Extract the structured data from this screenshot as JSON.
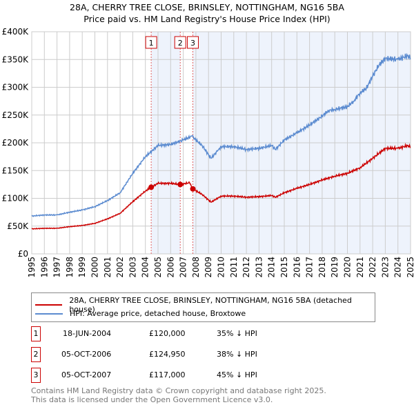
{
  "title": "28A, CHERRY TREE CLOSE, BRINSLEY, NOTTINGHAM, NG16 5BA",
  "subtitle": "Price paid vs. HM Land Registry's House Price Index (HPI)",
  "chart_data": {
    "type": "line",
    "title": "28A, CHERRY TREE CLOSE, BRINSLEY, NOTTINGHAM, NG16 5BA",
    "subtitle": "Price paid vs. HM Land Registry's House Price Index (HPI)",
    "xlim": [
      1995,
      2025
    ],
    "ylim": [
      0,
      400000
    ],
    "grid": true,
    "y_ticks": [
      {
        "v": 0,
        "label": "£0"
      },
      {
        "v": 50000,
        "label": "£50K"
      },
      {
        "v": 100000,
        "label": "£100K"
      },
      {
        "v": 150000,
        "label": "£150K"
      },
      {
        "v": 200000,
        "label": "£200K"
      },
      {
        "v": 250000,
        "label": "£250K"
      },
      {
        "v": 300000,
        "label": "£300K"
      },
      {
        "v": 350000,
        "label": "£350K"
      },
      {
        "v": 400000,
        "label": "£400K"
      }
    ],
    "x_ticks": [
      "1995",
      "1996",
      "1997",
      "1998",
      "1999",
      "2000",
      "2001",
      "2002",
      "2003",
      "2004",
      "2005",
      "2006",
      "2007",
      "2008",
      "2009",
      "2010",
      "2011",
      "2012",
      "2013",
      "2014",
      "2015",
      "2016",
      "2017",
      "2018",
      "2019",
      "2020",
      "2021",
      "2022",
      "2023",
      "2024",
      "2025"
    ],
    "series": [
      {
        "name": "28A, CHERRY TREE CLOSE, BRINSLEY, NOTTINGHAM, NG16 5BA (detached house)",
        "color": "#cc0000",
        "x": [
          1995,
          1996,
          1997,
          1998,
          1999,
          2000,
          2001,
          2002,
          2003,
          2004,
          2004.46,
          2005,
          2006,
          2006.76,
          2007.5,
          2007.76,
          2008.5,
          2009.2,
          2010,
          2011,
          2012,
          2013,
          2014,
          2014.3,
          2015,
          2016,
          2017,
          2018,
          2019,
          2020,
          2021,
          2022,
          2023,
          2024,
          2024.8,
          2025
        ],
        "y": [
          45000,
          46000,
          46000,
          49000,
          51000,
          55000,
          63000,
          73000,
          94000,
          113000,
          120000,
          127000,
          127000,
          124950,
          128000,
          117000,
          107000,
          93000,
          104000,
          104000,
          102000,
          103000,
          105000,
          102000,
          110000,
          118000,
          125000,
          133000,
          140000,
          145000,
          155000,
          172000,
          190000,
          190000,
          195000,
          192000
        ]
      },
      {
        "name": "HPI: Average price, detached house, Broxtowe",
        "color": "#5b8bd0",
        "x": [
          1995,
          1996,
          1997,
          1998,
          1999,
          2000,
          2001,
          2002,
          2003,
          2004,
          2004.5,
          2005,
          2006,
          2007,
          2007.7,
          2008,
          2008.5,
          2009.2,
          2009.7,
          2010,
          2011,
          2012,
          2013,
          2014,
          2014.3,
          2015,
          2016,
          2017,
          2018,
          2018.5,
          2019,
          2020,
          2020.5,
          2021,
          2021.5,
          2022,
          2022.5,
          2023,
          2024,
          2024.8,
          2025
        ],
        "y": [
          68000,
          70000,
          70000,
          75000,
          79000,
          85000,
          96000,
          110000,
          145000,
          175000,
          185000,
          195000,
          197000,
          205000,
          212000,
          205000,
          195000,
          172000,
          185000,
          193000,
          193000,
          188000,
          190000,
          195000,
          188000,
          205000,
          218000,
          232000,
          248000,
          258000,
          260000,
          265000,
          275000,
          290000,
          298000,
          320000,
          340000,
          352000,
          350000,
          357000,
          352000
        ]
      }
    ],
    "sales": [
      {
        "n": "1",
        "x": 2004.46,
        "date": "18-JUN-2004",
        "price": "£120,000",
        "value": 120000,
        "hpi": "35% ↓ HPI"
      },
      {
        "n": "2",
        "x": 2006.76,
        "date": "05-OCT-2006",
        "price": "£124,950",
        "value": 124950,
        "hpi": "38% ↓ HPI"
      },
      {
        "n": "3",
        "x": 2007.76,
        "date": "05-OCT-2007",
        "price": "£117,000",
        "value": 117000,
        "hpi": "45% ↓ HPI"
      }
    ]
  },
  "footer": [
    "Contains HM Land Registry data © Crown copyright and database right 2025.",
    "This data is licensed under the Open Government Licence v3.0."
  ]
}
